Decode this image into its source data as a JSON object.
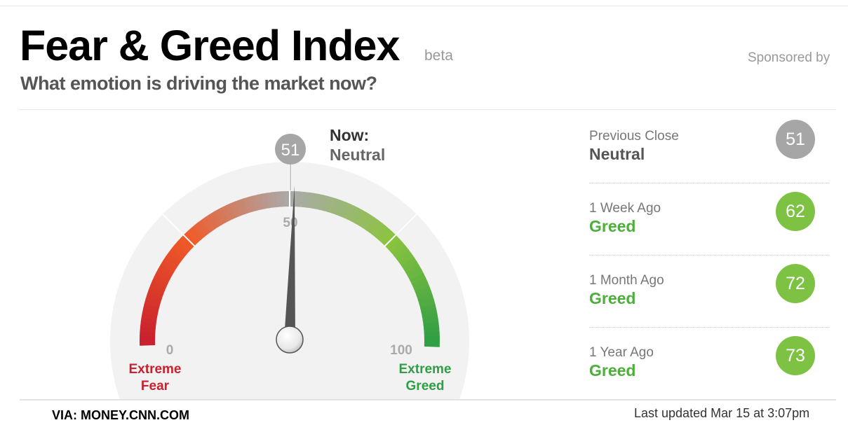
{
  "header": {
    "title": "Fear & Greed Index",
    "badge": "beta",
    "subtitle": "What emotion is driving the market now?",
    "sponsored": "Sponsored by"
  },
  "gauge": {
    "value": 51,
    "value_label": "51",
    "now_label": "Now:",
    "now_rating": "Neutral",
    "tick_min": "0",
    "tick_mid": "50",
    "tick_max": "100",
    "left_label_1": "Extreme",
    "left_label_2": "Fear",
    "right_label_1": "Extreme",
    "right_label_2": "Greed",
    "colors": {
      "extreme_fear": "#c8202e",
      "fear": "#f05a28",
      "neutral": "#aaaaaa",
      "greed": "#8cc43f",
      "extreme_greed": "#2f9e44"
    }
  },
  "history": [
    {
      "label": "Previous Close",
      "rating": "Neutral",
      "value": "51",
      "rating_color": "#555555",
      "circle_color": "#a6a6a6"
    },
    {
      "label": "1 Week Ago",
      "rating": "Greed",
      "value": "62",
      "rating_color": "#4caf3a",
      "circle_color": "#7dc242"
    },
    {
      "label": "1 Month Ago",
      "rating": "Greed",
      "value": "72",
      "rating_color": "#4caf3a",
      "circle_color": "#7dc242"
    },
    {
      "label": "1 Year Ago",
      "rating": "Greed",
      "value": "73",
      "rating_color": "#4caf3a",
      "circle_color": "#7dc242"
    }
  ],
  "footer": {
    "source": "VIA: MONEY.CNN.COM",
    "updated": "Last updated Mar 15 at 3:07pm"
  }
}
